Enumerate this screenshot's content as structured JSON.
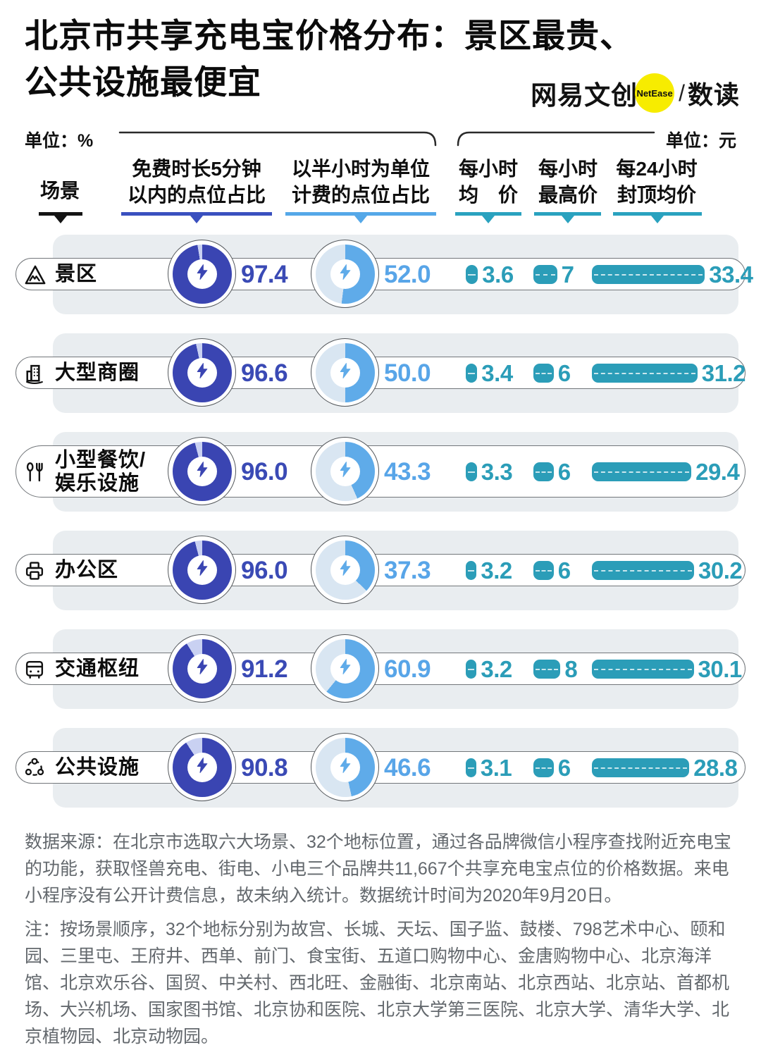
{
  "title": {
    "line1": "北京市共享充电宝价格分布：景区最贵、",
    "line2": "公共设施最便宜"
  },
  "logo": {
    "brand": "网易文创",
    "badge": "NetEase",
    "sep": "/",
    "product": "数读"
  },
  "units": {
    "left": "单位：%",
    "right": "单位：元"
  },
  "columns": {
    "scene": "场景",
    "col1_line1": "免费时长5分钟",
    "col1_line2": "以内的点位占比",
    "col2_line1": "以半小时为单位",
    "col2_line2": "计费的点位占比",
    "col3_line1": "每小时",
    "col3_line2": "均　价",
    "col4_line1": "每小时",
    "col4_line2": "最高价",
    "col5_line1": "每24小时",
    "col5_line2": "封顶均价"
  },
  "rows": [
    {
      "icon": "mountain",
      "label": "景区",
      "label2": "",
      "pct_free": "97.4",
      "pct_half": "52.0",
      "hour_avg": "3.6",
      "hour_max": "7",
      "cap_avg": "33.4"
    },
    {
      "icon": "building",
      "label": "大型商圈",
      "label2": "",
      "pct_free": "96.6",
      "pct_half": "50.0",
      "hour_avg": "3.4",
      "hour_max": "6",
      "cap_avg": "31.2"
    },
    {
      "icon": "dining",
      "label": "小型餐饮/",
      "label2": "娱乐设施",
      "pct_free": "96.0",
      "pct_half": "43.3",
      "hour_avg": "3.3",
      "hour_max": "6",
      "cap_avg": "29.4"
    },
    {
      "icon": "printer",
      "label": "办公区",
      "label2": "",
      "pct_free": "96.0",
      "pct_half": "37.3",
      "hour_avg": "3.2",
      "hour_max": "6",
      "cap_avg": "30.2"
    },
    {
      "icon": "bus",
      "label": "交通枢纽",
      "label2": "",
      "pct_free": "91.2",
      "pct_half": "60.9",
      "hour_avg": "3.2",
      "hour_max": "8",
      "cap_avg": "30.1"
    },
    {
      "icon": "network",
      "label": "公共设施",
      "label2": "",
      "pct_free": "90.8",
      "pct_half": "46.6",
      "hour_avg": "3.1",
      "hour_max": "6",
      "cap_avg": "28.8"
    }
  ],
  "chart_data": {
    "type": "table",
    "title": "北京市共享充电宝价格分布：景区最贵、公共设施最便宜",
    "categories": [
      "景区",
      "大型商圈",
      "小型餐饮/娱乐设施",
      "办公区",
      "交通枢纽",
      "公共设施"
    ],
    "series": [
      {
        "name": "免费时长5分钟以内的点位占比",
        "unit": "%",
        "values": [
          97.4,
          96.6,
          96.0,
          96.0,
          91.2,
          90.8
        ]
      },
      {
        "name": "以半小时为单位计费的点位占比",
        "unit": "%",
        "values": [
          52.0,
          50.0,
          43.3,
          37.3,
          60.9,
          46.6
        ]
      },
      {
        "name": "每小时均价",
        "unit": "元",
        "values": [
          3.6,
          3.4,
          3.3,
          3.2,
          3.2,
          3.1
        ]
      },
      {
        "name": "每小时最高价",
        "unit": "元",
        "values": [
          7,
          6,
          6,
          6,
          8,
          6
        ]
      },
      {
        "name": "每24小时封顶均价",
        "unit": "元",
        "values": [
          33.4,
          31.2,
          29.4,
          30.2,
          30.1,
          28.8
        ]
      }
    ],
    "legend_position": "none",
    "grid": false
  },
  "footer": {
    "source": "数据来源：在北京市选取六大场景、32个地标位置，通过各品牌微信小程序查找附近充电宝的功能，获取怪兽充电、街电、小电三个品牌共11,667个共享充电宝点位的价格数据。来电小程序没有公开计费信息，故未纳入统计。数据统计时间为2020年9月20日。",
    "note": "注：按场景顺序，32个地标分别为故宫、长城、天坛、国子监、鼓楼、798艺术中心、颐和园、三里屯、王府井、西单、前门、食宝街、五道口购物中心、金唐购物中心、北京海洋馆、北京欢乐谷、国贸、中关村、西北旺、金融街、北京南站、北京西站、北京站、首都机场、大兴机场、国家图书馆、北京协和医院、北京大学第三医院、北京大学、清华大学、北京植物园、北京动物园。"
  },
  "colors": {
    "dark_blue": "#3a45b2",
    "dark_blue_rest": "#c9d1f2",
    "dark_blue_text": "#3a4ab5",
    "light_blue": "#5fabe9",
    "light_blue_rest": "#d9e6f2",
    "light_blue_text": "#58a5e8",
    "teal": "#2b9db8",
    "row_bg": "#e9edf0",
    "logo_yellow": "#f7ec00",
    "rule_dark": "#3a50bf",
    "rule_light": "#55a8e8",
    "rule_teal": "#2aa2bf",
    "rule_black": "#141414"
  }
}
